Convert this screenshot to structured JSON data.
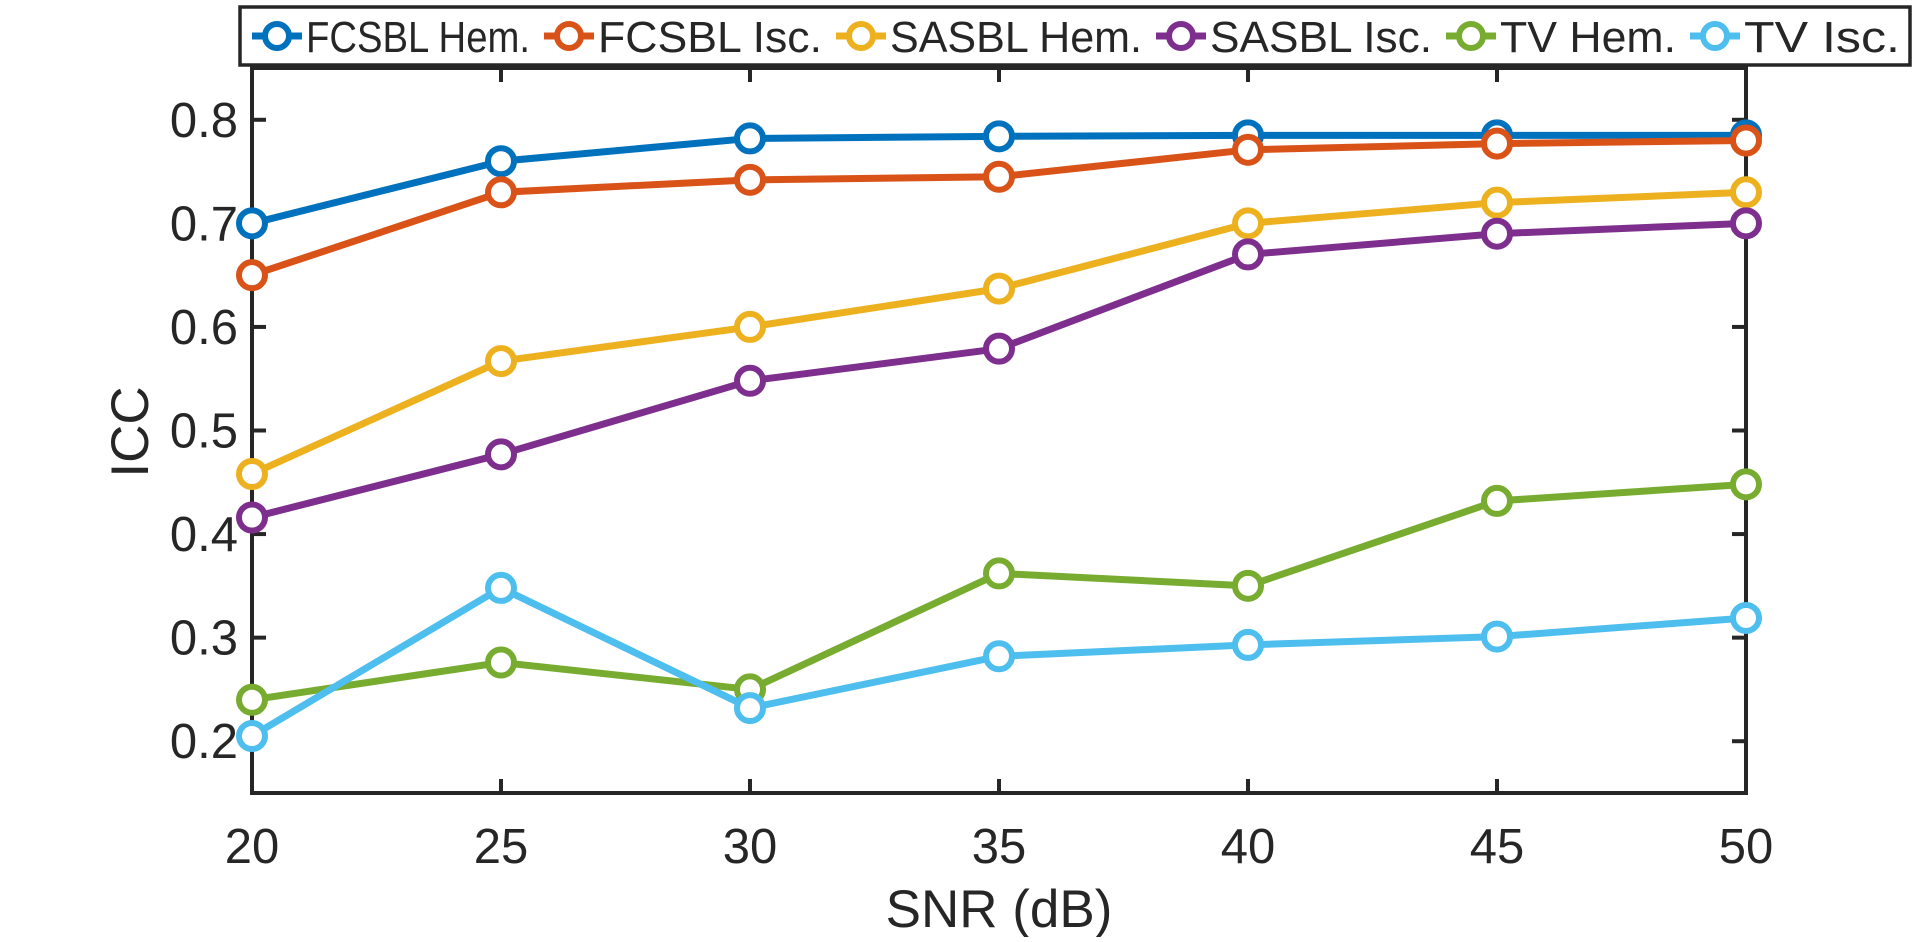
{
  "chart_data": {
    "type": "line",
    "title": "",
    "xlabel": "SNR (dB)",
    "ylabel": "ICC",
    "x": [
      20,
      25,
      30,
      35,
      40,
      45,
      50
    ],
    "xlim": [
      20,
      50
    ],
    "ylim": [
      0.15,
      0.85
    ],
    "xticks": [
      "20",
      "25",
      "30",
      "35",
      "40",
      "45",
      "50"
    ],
    "yticks": [
      "0.2",
      "0.3",
      "0.4",
      "0.5",
      "0.6",
      "0.7",
      "0.8"
    ],
    "grid": false,
    "legend_position": "top",
    "series": [
      {
        "name": "FCSBL Hem.",
        "color": "#0072BD",
        "values": [
          0.7,
          0.76,
          0.782,
          0.784,
          0.785,
          0.785,
          0.785
        ]
      },
      {
        "name": "FCSBL Isc.",
        "color": "#D95319",
        "values": [
          0.65,
          0.73,
          0.742,
          0.745,
          0.771,
          0.777,
          0.78
        ]
      },
      {
        "name": "SASBL Hem.",
        "color": "#EDB120",
        "values": [
          0.458,
          0.567,
          0.6,
          0.637,
          0.7,
          0.72,
          0.73
        ]
      },
      {
        "name": "SASBL Isc.",
        "color": "#7E2F8E",
        "values": [
          0.416,
          0.477,
          0.548,
          0.579,
          0.67,
          0.69,
          0.7
        ]
      },
      {
        "name": "TV Hem.",
        "color": "#77AC30",
        "values": [
          0.24,
          0.276,
          0.25,
          0.362,
          0.35,
          0.432,
          0.448
        ]
      },
      {
        "name": "TV Isc.",
        "color": "#4DBEEE",
        "values": [
          0.205,
          0.348,
          0.232,
          0.282,
          0.293,
          0.301,
          0.319
        ]
      }
    ]
  }
}
